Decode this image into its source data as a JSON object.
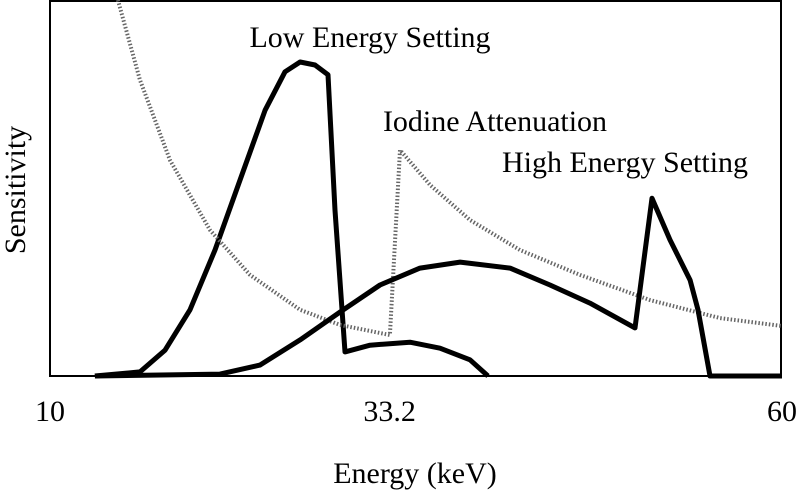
{
  "chart_data": {
    "type": "line",
    "xlabel": "Energy (keV)",
    "ylabel": "Sensitivity",
    "xlim": [
      10,
      60
    ],
    "xticks": [
      10,
      33.2,
      60
    ],
    "ylim": [
      0,
      1
    ],
    "series": [
      {
        "name": "Low Energy Setting",
        "color": "#000000",
        "style": "solid",
        "x": [
          13.07,
          16.15,
          17.86,
          19.56,
          21.27,
          22.98,
          24.69,
          26.05,
          27.08,
          28.1,
          28.99,
          29.47,
          30.15,
          31.86,
          34.59,
          36.64,
          38.69,
          39.92
        ],
        "values": [
          0,
          0.011,
          0.069,
          0.176,
          0.335,
          0.521,
          0.707,
          0.809,
          0.835,
          0.827,
          0.801,
          0.441,
          0.064,
          0.082,
          0.09,
          0.074,
          0.043,
          0
        ]
      },
      {
        "name": "Iodine Attenuation",
        "color": "#666666",
        "style": "dotted",
        "x": [
          14.64,
          16.15,
          18.2,
          20.93,
          23.66,
          27.08,
          29.81,
          33.22,
          33.91,
          35.96,
          38.69,
          42.1,
          46.2,
          50.98,
          55.77,
          60
        ],
        "values": [
          1,
          0.787,
          0.574,
          0.388,
          0.269,
          0.176,
          0.136,
          0.109,
          0.601,
          0.508,
          0.415,
          0.335,
          0.269,
          0.202,
          0.154,
          0.133
        ]
      },
      {
        "name": "High Energy Setting",
        "color": "#000000",
        "style": "solid",
        "x": [
          13.07,
          21.61,
          24.34,
          27.08,
          29.81,
          32.54,
          35.27,
          38.01,
          41.42,
          44.15,
          46.88,
          49.96,
          51.12,
          52.35,
          53.72,
          54.26,
          55.08,
          60
        ],
        "values": [
          0,
          0.005,
          0.029,
          0.096,
          0.17,
          0.242,
          0.287,
          0.303,
          0.287,
          0.242,
          0.194,
          0.128,
          0.473,
          0.362,
          0.255,
          0.176,
          0,
          0
        ]
      }
    ]
  }
}
